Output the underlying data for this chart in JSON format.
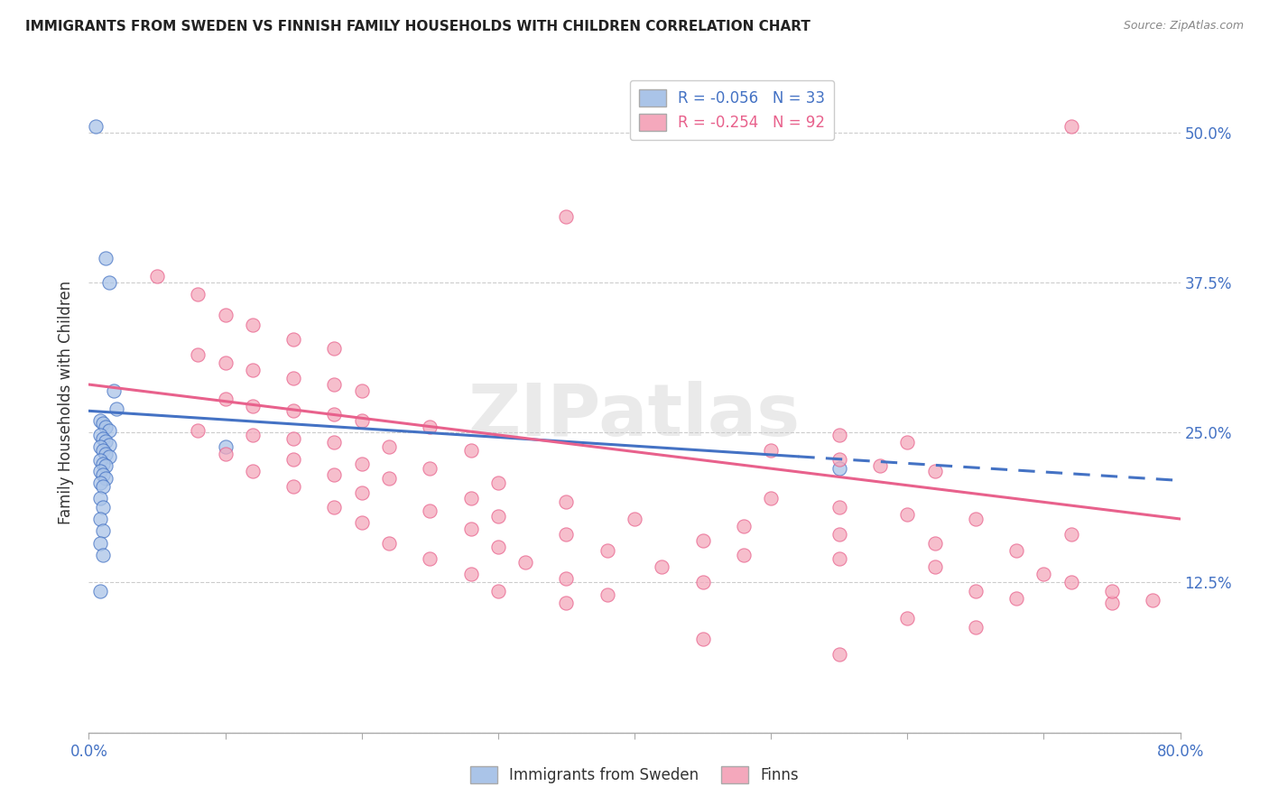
{
  "title": "IMMIGRANTS FROM SWEDEN VS FINNISH FAMILY HOUSEHOLDS WITH CHILDREN CORRELATION CHART",
  "source": "Source: ZipAtlas.com",
  "ylabel": "Family Households with Children",
  "x_min": 0.0,
  "x_max": 0.8,
  "y_min": 0.0,
  "y_max": 0.55,
  "x_ticks": [
    0.0,
    0.1,
    0.2,
    0.3,
    0.4,
    0.5,
    0.6,
    0.7,
    0.8
  ],
  "y_ticks": [
    0.0,
    0.125,
    0.25,
    0.375,
    0.5
  ],
  "y_tick_labels_right": [
    "",
    "12.5%",
    "25.0%",
    "37.5%",
    "50.0%"
  ],
  "color_sweden": "#aac4e8",
  "color_finns": "#f4a8bc",
  "color_sweden_line": "#4472c4",
  "color_finns_line": "#e8618c",
  "watermark": "ZIPatlas",
  "sweden_scatter": [
    [
      0.005,
      0.505
    ],
    [
      0.012,
      0.395
    ],
    [
      0.015,
      0.375
    ],
    [
      0.018,
      0.285
    ],
    [
      0.02,
      0.27
    ],
    [
      0.008,
      0.26
    ],
    [
      0.01,
      0.258
    ],
    [
      0.012,
      0.255
    ],
    [
      0.015,
      0.252
    ],
    [
      0.008,
      0.248
    ],
    [
      0.01,
      0.245
    ],
    [
      0.012,
      0.243
    ],
    [
      0.015,
      0.24
    ],
    [
      0.008,
      0.238
    ],
    [
      0.01,
      0.235
    ],
    [
      0.012,
      0.232
    ],
    [
      0.015,
      0.23
    ],
    [
      0.008,
      0.227
    ],
    [
      0.01,
      0.224
    ],
    [
      0.012,
      0.222
    ],
    [
      0.008,
      0.218
    ],
    [
      0.01,
      0.215
    ],
    [
      0.012,
      0.212
    ],
    [
      0.008,
      0.208
    ],
    [
      0.01,
      0.205
    ],
    [
      0.008,
      0.195
    ],
    [
      0.01,
      0.188
    ],
    [
      0.008,
      0.178
    ],
    [
      0.01,
      0.168
    ],
    [
      0.008,
      0.158
    ],
    [
      0.01,
      0.148
    ],
    [
      0.008,
      0.118
    ],
    [
      0.1,
      0.238
    ],
    [
      0.55,
      0.22
    ]
  ],
  "finns_scatter": [
    [
      0.72,
      0.505
    ],
    [
      0.35,
      0.43
    ],
    [
      0.05,
      0.38
    ],
    [
      0.08,
      0.365
    ],
    [
      0.1,
      0.348
    ],
    [
      0.12,
      0.34
    ],
    [
      0.15,
      0.328
    ],
    [
      0.18,
      0.32
    ],
    [
      0.08,
      0.315
    ],
    [
      0.1,
      0.308
    ],
    [
      0.12,
      0.302
    ],
    [
      0.15,
      0.295
    ],
    [
      0.18,
      0.29
    ],
    [
      0.2,
      0.285
    ],
    [
      0.1,
      0.278
    ],
    [
      0.12,
      0.272
    ],
    [
      0.15,
      0.268
    ],
    [
      0.18,
      0.265
    ],
    [
      0.2,
      0.26
    ],
    [
      0.25,
      0.255
    ],
    [
      0.08,
      0.252
    ],
    [
      0.12,
      0.248
    ],
    [
      0.15,
      0.245
    ],
    [
      0.18,
      0.242
    ],
    [
      0.22,
      0.238
    ],
    [
      0.28,
      0.235
    ],
    [
      0.1,
      0.232
    ],
    [
      0.15,
      0.228
    ],
    [
      0.2,
      0.224
    ],
    [
      0.25,
      0.22
    ],
    [
      0.12,
      0.218
    ],
    [
      0.18,
      0.215
    ],
    [
      0.22,
      0.212
    ],
    [
      0.3,
      0.208
    ],
    [
      0.15,
      0.205
    ],
    [
      0.2,
      0.2
    ],
    [
      0.28,
      0.195
    ],
    [
      0.35,
      0.192
    ],
    [
      0.18,
      0.188
    ],
    [
      0.25,
      0.185
    ],
    [
      0.3,
      0.18
    ],
    [
      0.4,
      0.178
    ],
    [
      0.2,
      0.175
    ],
    [
      0.28,
      0.17
    ],
    [
      0.35,
      0.165
    ],
    [
      0.45,
      0.16
    ],
    [
      0.22,
      0.158
    ],
    [
      0.3,
      0.155
    ],
    [
      0.38,
      0.152
    ],
    [
      0.48,
      0.148
    ],
    [
      0.25,
      0.145
    ],
    [
      0.32,
      0.142
    ],
    [
      0.42,
      0.138
    ],
    [
      0.28,
      0.132
    ],
    [
      0.35,
      0.128
    ],
    [
      0.45,
      0.125
    ],
    [
      0.3,
      0.118
    ],
    [
      0.38,
      0.115
    ],
    [
      0.35,
      0.108
    ],
    [
      0.55,
      0.248
    ],
    [
      0.6,
      0.242
    ],
    [
      0.5,
      0.235
    ],
    [
      0.55,
      0.228
    ],
    [
      0.58,
      0.222
    ],
    [
      0.62,
      0.218
    ],
    [
      0.5,
      0.195
    ],
    [
      0.55,
      0.188
    ],
    [
      0.6,
      0.182
    ],
    [
      0.65,
      0.178
    ],
    [
      0.48,
      0.172
    ],
    [
      0.55,
      0.165
    ],
    [
      0.62,
      0.158
    ],
    [
      0.68,
      0.152
    ],
    [
      0.55,
      0.145
    ],
    [
      0.62,
      0.138
    ],
    [
      0.7,
      0.132
    ],
    [
      0.72,
      0.125
    ],
    [
      0.65,
      0.118
    ],
    [
      0.68,
      0.112
    ],
    [
      0.75,
      0.108
    ],
    [
      0.6,
      0.095
    ],
    [
      0.65,
      0.088
    ],
    [
      0.45,
      0.078
    ],
    [
      0.55,
      0.065
    ],
    [
      0.72,
      0.165
    ],
    [
      0.75,
      0.118
    ],
    [
      0.78,
      0.11
    ]
  ],
  "sweden_line_solid": {
    "x0": 0.0,
    "y0": 0.268,
    "x1": 0.52,
    "y1": 0.23
  },
  "sweden_line_dash": {
    "x0": 0.52,
    "y0": 0.23,
    "x1": 0.8,
    "y1": 0.21
  },
  "finns_line": {
    "x0": 0.0,
    "y0": 0.29,
    "x1": 0.8,
    "y1": 0.178
  }
}
